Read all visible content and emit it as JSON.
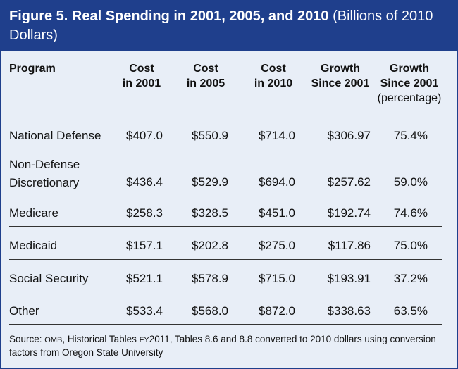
{
  "figure": {
    "title_bold": "Figure 5. Real Spending in 2001, 2005, and 2010",
    "title_normal": " (Billions of 2010 Dollars)"
  },
  "table": {
    "headers": {
      "program": "Program",
      "cost2001_l1": "Cost",
      "cost2001_l2": "in 2001",
      "cost2005_l1": "Cost",
      "cost2005_l2": "in 2005",
      "cost2010_l1": "Cost",
      "cost2010_l2": "in 2010",
      "growth_l1": "Growth",
      "growth_l2": "Since 2001",
      "growthpct_l1": "Growth",
      "growthpct_l2": "Since 2001",
      "growthpct_l3": "(percentage)"
    },
    "rows": [
      {
        "program": "National Defense",
        "c2001": "$407.0",
        "c2005": "$550.9",
        "c2010": "$714.0",
        "growth": "$306.97",
        "pct": "75.4%"
      },
      {
        "program_l1": "Non-Defense",
        "program_l2": "Discretionary",
        "c2001": "$436.4",
        "c2005": "$529.9",
        "c2010": "$694.0",
        "growth": "$257.62",
        "pct": "59.0%"
      },
      {
        "program": "Medicare",
        "c2001": "$258.3",
        "c2005": "$328.5",
        "c2010": "$451.0",
        "growth": "$192.74",
        "pct": "74.6%"
      },
      {
        "program": "Medicaid",
        "c2001": "$157.1",
        "c2005": "$202.8",
        "c2010": "$275.0",
        "growth": "$117.86",
        "pct": "75.0%"
      },
      {
        "program": "Social Security",
        "c2001": "$521.1",
        "c2005": "$578.9",
        "c2010": "$715.0",
        "growth": "$193.91",
        "pct": "37.2%"
      },
      {
        "program": "Other",
        "c2001": "$533.4",
        "c2005": "$568.0",
        "c2010": "$872.0",
        "growth": "$338.63",
        "pct": "63.5%"
      }
    ]
  },
  "source": {
    "prefix": "Source: ",
    "omb": "OMB",
    "mid": ", Historical Tables ",
    "fy": "FY",
    "rest": "2011, Tables 8.6 and 8.8 converted to 2010 dollars using conversion factors from Oregon State University"
  },
  "colors": {
    "title_bg": "#1f3f8c",
    "panel_bg": "#e8eef7"
  }
}
